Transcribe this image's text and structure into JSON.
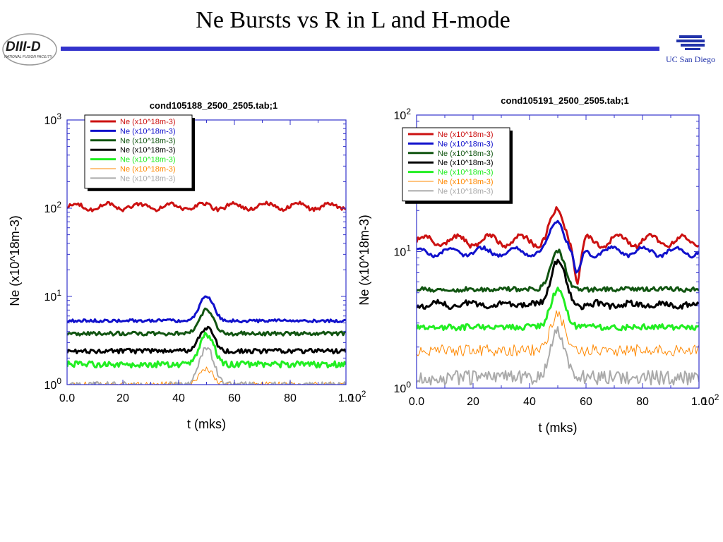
{
  "slide": {
    "title": "Ne Bursts vs R in L and H-mode",
    "title_rule_color": "#3333cc",
    "logo_left_text": "DIII-D",
    "logo_left_subtext": "NATIONAL FUSION FACILITY",
    "logo_right_text": "UC San Diego"
  },
  "chart_data": [
    {
      "type": "line",
      "title": "cond105188_2500_2505.tab;1",
      "xlabel": "t (mks)",
      "ylabel": "Ne (x10^18m-3)",
      "xlim": [
        0,
        100
      ],
      "ylim": [
        1,
        1000
      ],
      "yscale": "log",
      "x_ticks": [
        "0.0",
        "20",
        "40",
        "60",
        "80",
        "1.0"
      ],
      "x_multiplier": "10",
      "x_multiplier_exp": "2",
      "y_ticks": [
        {
          "base": "10",
          "exp": "0"
        },
        {
          "base": "10",
          "exp": "1"
        },
        {
          "base": "10",
          "exp": "2"
        },
        {
          "base": "10",
          "exp": "3"
        }
      ],
      "grid": false,
      "legend_position": "top-left",
      "series": [
        {
          "name": "Ne (x10^18m-3)",
          "color": "#cc1111",
          "width": 3,
          "baseline": 105,
          "peak_factor": 1.0,
          "noise": 0.05,
          "wave": 0.08,
          "dip": 0.0
        },
        {
          "name": "Ne (x10^18m-3)",
          "color": "#1111cc",
          "width": 3,
          "baseline": 5.3,
          "peak_factor": 1.9,
          "noise": 0.04,
          "wave": 0.0,
          "dip": 0.0
        },
        {
          "name": "Ne (x10^18m-3)",
          "color": "#115511",
          "width": 3,
          "baseline": 3.8,
          "peak_factor": 1.85,
          "noise": 0.05,
          "wave": 0.0,
          "dip": 0.0
        },
        {
          "name": "Ne (x10^18m-3)",
          "color": "#000000",
          "width": 3,
          "baseline": 2.4,
          "peak_factor": 1.85,
          "noise": 0.06,
          "wave": 0.0,
          "dip": 0.0
        },
        {
          "name": "Ne (x10^18m-3)",
          "color": "#22ee22",
          "width": 3,
          "baseline": 1.7,
          "peak_factor": 2.2,
          "noise": 0.08,
          "wave": 0.0,
          "dip": 0.0
        },
        {
          "name": "Ne (x10^18m-3)",
          "color": "#ff8800",
          "width": 1,
          "baseline": 1.0,
          "peak_factor": 1.5,
          "noise": 0.08,
          "wave": 0.0,
          "dip": 0.0
        },
        {
          "name": "Ne (x10^18m-3)",
          "color": "#aaaaaa",
          "width": 2,
          "baseline": 1.0,
          "peak_factor": 2.6,
          "noise": 0.08,
          "wave": 0.0,
          "dip": 0.0
        }
      ]
    },
    {
      "type": "line",
      "title": "cond105191_2500_2505.tab;1",
      "xlabel": "t (mks)",
      "ylabel": "Ne (x10^18m-3)",
      "xlim": [
        0,
        100
      ],
      "ylim": [
        1,
        100
      ],
      "yscale": "log",
      "x_ticks": [
        "0.0",
        "20",
        "40",
        "60",
        "80",
        "1.0"
      ],
      "x_multiplier": "10",
      "x_multiplier_exp": "2",
      "y_ticks": [
        {
          "base": "10",
          "exp": "0"
        },
        {
          "base": "10",
          "exp": "1"
        },
        {
          "base": "10",
          "exp": "2"
        }
      ],
      "grid": false,
      "legend_position": "top-left",
      "series": [
        {
          "name": "Ne (x10^18m-3)",
          "color": "#cc1111",
          "width": 3,
          "baseline": 12,
          "peak_factor": 1.6,
          "noise": 0.04,
          "wave": 0.09,
          "dip": 0.5
        },
        {
          "name": "Ne (x10^18m-3)",
          "color": "#1111cc",
          "width": 3,
          "baseline": 10,
          "peak_factor": 1.7,
          "noise": 0.03,
          "wave": 0.07,
          "dip": 0.35
        },
        {
          "name": "Ne (x10^18m-3)",
          "color": "#115511",
          "width": 3,
          "baseline": 5.3,
          "peak_factor": 1.9,
          "noise": 0.04,
          "wave": 0.0,
          "dip": 0.0
        },
        {
          "name": "Ne (x10^18m-3)",
          "color": "#000000",
          "width": 3,
          "baseline": 4.1,
          "peak_factor": 2.1,
          "noise": 0.05,
          "wave": 0.03,
          "dip": 0.0
        },
        {
          "name": "Ne (x10^18m-3)",
          "color": "#22ee22",
          "width": 3,
          "baseline": 2.8,
          "peak_factor": 1.85,
          "noise": 0.05,
          "wave": 0.0,
          "dip": 0.0
        },
        {
          "name": "Ne (x10^18m-3)",
          "color": "#ff8800",
          "width": 1,
          "baseline": 1.9,
          "peak_factor": 1.8,
          "noise": 0.1,
          "wave": 0.0,
          "dip": 0.0
        },
        {
          "name": "Ne (x10^18m-3)",
          "color": "#aaaaaa",
          "width": 2,
          "baseline": 1.2,
          "peak_factor": 2.2,
          "noise": 0.12,
          "wave": 0.0,
          "dip": 0.0
        }
      ]
    }
  ]
}
